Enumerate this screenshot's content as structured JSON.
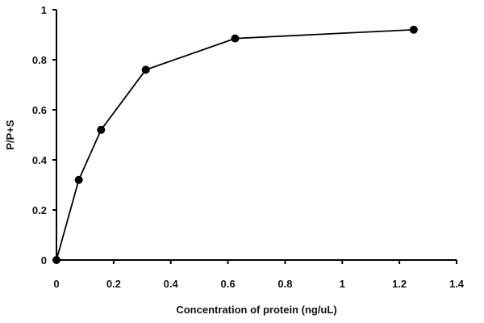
{
  "chart_data": {
    "type": "line",
    "title": "",
    "xlabel": "Concentration of protein (ng/uL)",
    "ylabel": "P/P+S",
    "xlim": [
      0,
      1.4
    ],
    "ylim": [
      0,
      1
    ],
    "x_ticks": [
      "0",
      "0.2",
      "0.4",
      "0.6",
      "0.8",
      "1",
      "1.2",
      "1.4"
    ],
    "y_ticks": [
      "0",
      "0.2",
      "0.4",
      "0.6",
      "0.8",
      "1"
    ],
    "grid": false,
    "legend": "none",
    "series": [
      {
        "x": [
          0,
          0.078,
          0.156,
          0.3125,
          0.625,
          1.25
        ],
        "y": [
          0,
          0.32,
          0.52,
          0.76,
          0.885,
          0.92
        ],
        "marker": "circle",
        "color": "#000000"
      }
    ]
  }
}
